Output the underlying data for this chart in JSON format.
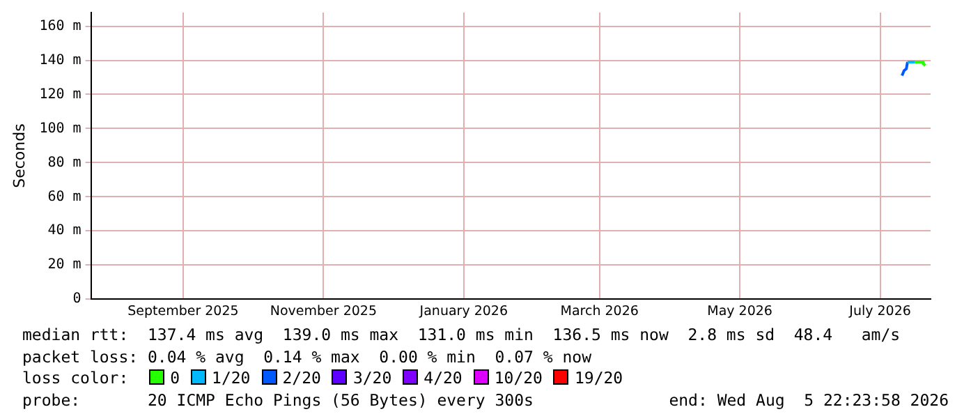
{
  "chart_data": {
    "type": "line",
    "ylabel": "Seconds",
    "legend_title": "loss color:",
    "legend": "bottom",
    "grid": true,
    "marker": "none",
    "line_style": "solid",
    "x": [
      "2026-07-24T12:00",
      "2026-07-25T10:00",
      "2026-07-26T09:00",
      "2026-07-26T22:00",
      "2026-07-30T05:00",
      "2026-08-02T08:00",
      "2026-08-02T17:00",
      "2026-08-03T16:00"
    ],
    "xlim": [
      "2025-08-05T22:24",
      "2026-08-05T22:24"
    ],
    "xticks": [
      {
        "value": "2025-09-15",
        "label": "September 2025"
      },
      {
        "value": "2025-11-15",
        "label": "November 2025"
      },
      {
        "value": "2026-01-15",
        "label": "January 2026"
      },
      {
        "value": "2026-03-15",
        "label": "March 2026"
      },
      {
        "value": "2026-05-15",
        "label": "May 2026"
      },
      {
        "value": "2026-07-15",
        "label": "July 2026"
      }
    ],
    "ylim": [
      0,
      168
    ],
    "yticks": [
      0,
      {
        "value": 20,
        "label": "20 m"
      },
      {
        "value": 40,
        "label": "40 m"
      },
      {
        "value": 60,
        "label": "60 m"
      },
      {
        "value": 80,
        "label": "80 m"
      },
      {
        "value": 100,
        "label": "100 m"
      },
      {
        "value": 120,
        "label": "120 m"
      },
      {
        "value": 140,
        "label": "140 m"
      },
      {
        "value": 160,
        "label": "160 m"
      }
    ],
    "series": [
      {
        "name": "0",
        "color": "#26ff00",
        "values": [
          null,
          null,
          null,
          null,
          139,
          139,
          138,
          137
        ]
      },
      {
        "name": "1/20",
        "color": "#00b8ff",
        "values": [
          null,
          null,
          null,
          139,
          139,
          null,
          null,
          null
        ]
      },
      {
        "name": "2/20",
        "color": "#0059ff",
        "values": [
          131,
          134,
          135,
          139,
          null,
          null,
          null,
          null
        ]
      },
      {
        "name": "3/20",
        "color": "#5e00ff",
        "values": [
          null,
          null,
          null,
          null,
          null,
          null,
          null,
          null
        ]
      },
      {
        "name": "4/20",
        "color": "#7e00ff",
        "values": [
          null,
          null,
          null,
          null,
          null,
          null,
          null,
          null
        ]
      },
      {
        "name": "10/20",
        "color": "#dd00ff",
        "values": [
          null,
          null,
          null,
          null,
          null,
          null,
          null,
          null
        ]
      },
      {
        "name": "19/20",
        "color": "#ff0000",
        "values": [
          null,
          null,
          null,
          null,
          null,
          null,
          null,
          null
        ]
      }
    ],
    "annotations": [
      "median rtt:  137.4 ms avg  139.0 ms max  131.0 ms min  136.5 ms now  2.8 ms sd  48.4   am/s",
      "packet loss: 0.04 % avg  0.14 % max  0.00 % min  0.07 % now",
      "probe:       20 ICMP Echo Pings (56 Bytes) every 300s",
      "end: Wed Aug  5 22:23:58 2026"
    ]
  }
}
